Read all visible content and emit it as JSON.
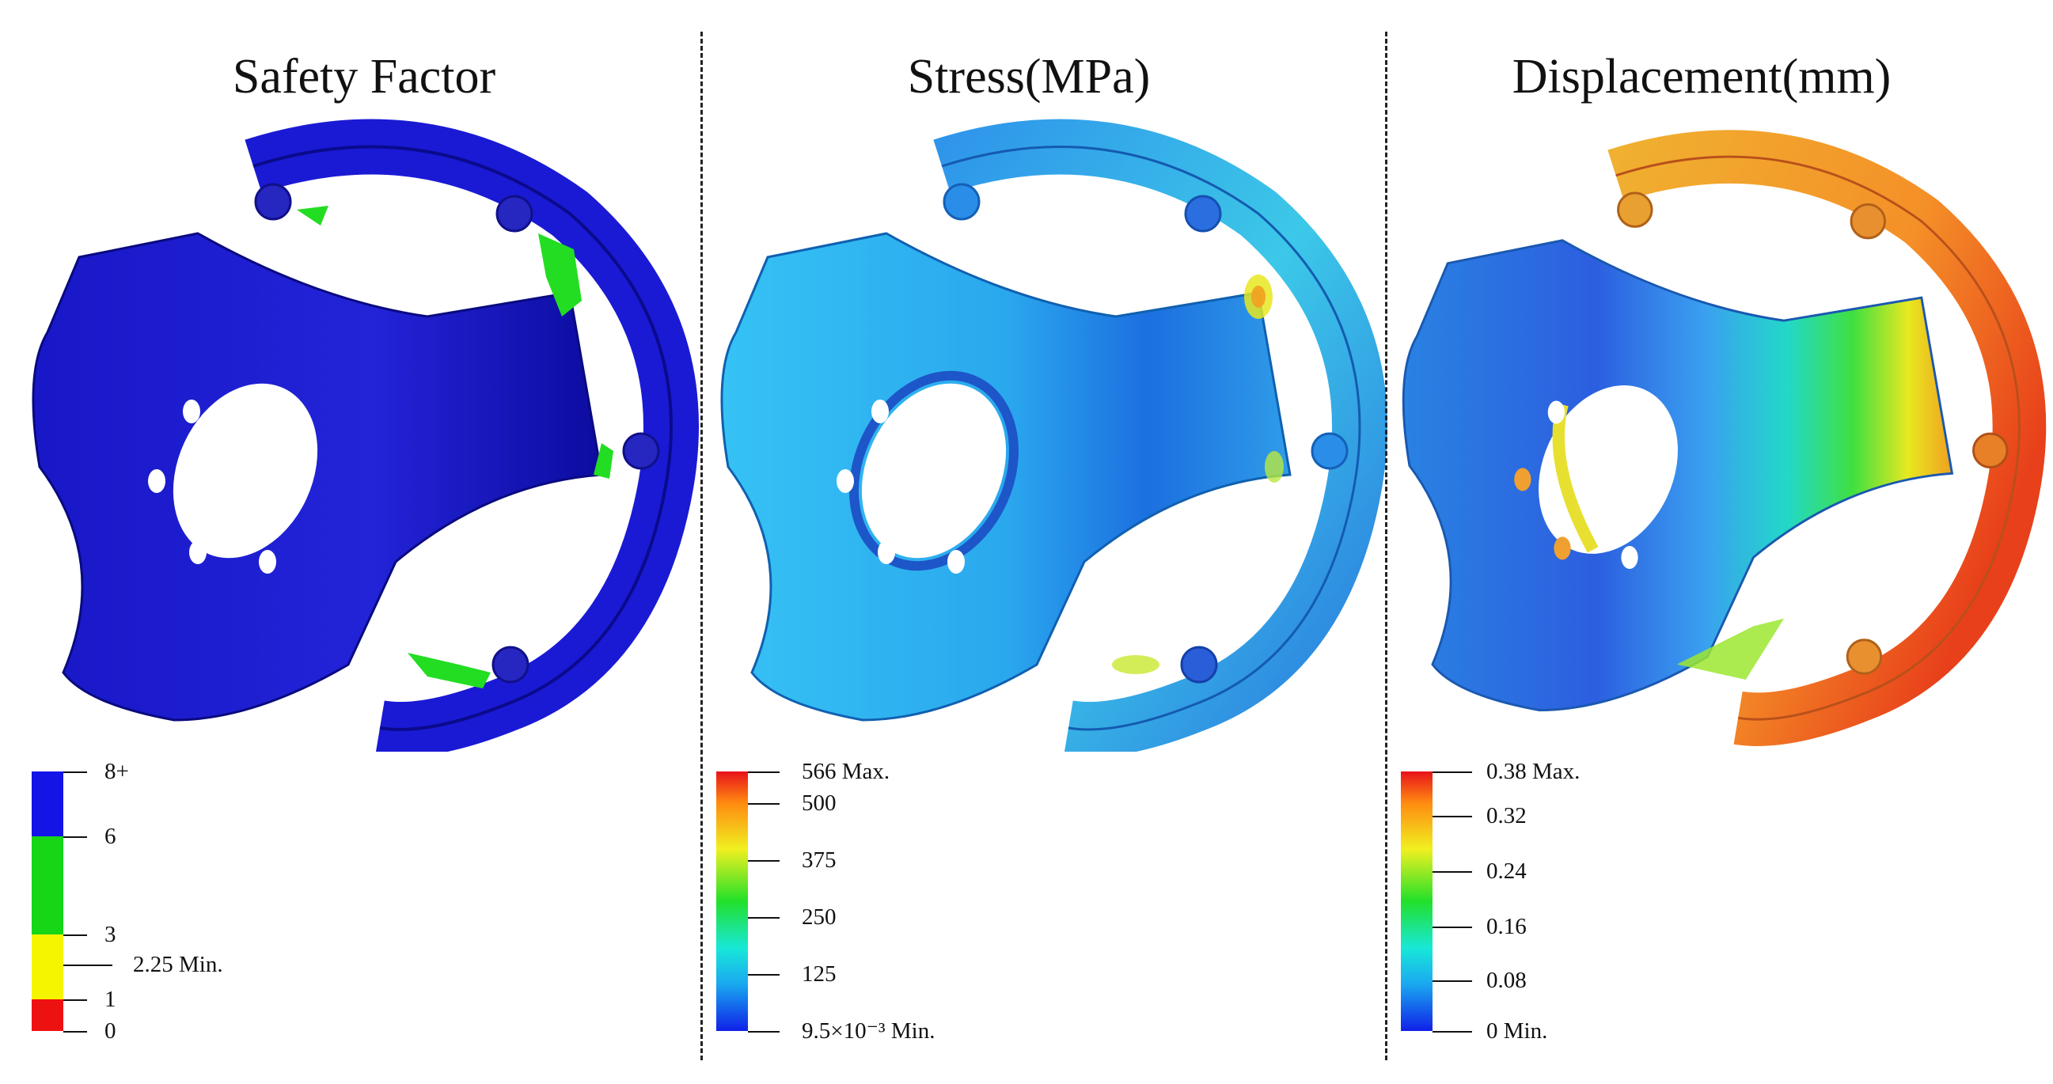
{
  "panels": [
    {
      "title": "Safety Factor",
      "legend_labels": [
        "8+",
        "6",
        "3",
        "2.25 Min.",
        "1",
        "0"
      ],
      "legend_colors": [
        "#1414e6",
        "#16d616",
        "#f5f500",
        "#ee1111"
      ]
    },
    {
      "title": "Stress(MPa)",
      "legend_labels": [
        "566 Max.",
        "500",
        "375",
        "250",
        "125",
        "9.5×10⁻³ Min."
      ]
    },
    {
      "title": "Displacement(mm)",
      "legend_labels": [
        "0.38 Max.",
        "0.32",
        "0.24",
        "0.16",
        "0.08",
        "0 Min."
      ]
    }
  ],
  "colors": {
    "safety_body": "#1a1ad0",
    "stress_body": "#2fb4ee",
    "disp_body": "#2a7de0",
    "disp_ring": "#f08a22"
  }
}
